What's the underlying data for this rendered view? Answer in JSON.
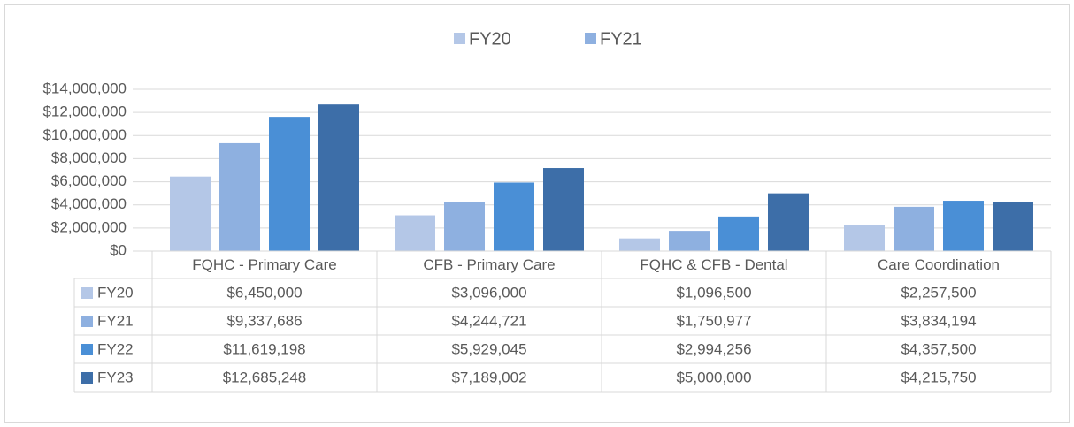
{
  "chart_data": {
    "type": "bar",
    "categories": [
      "FQHC - Primary Care",
      "CFB - Primary Care",
      "FQHC & CFB  - Dental",
      "Care Coordination"
    ],
    "series": [
      {
        "name": "FY20",
        "color": "#b4c7e7",
        "values": [
          6450000,
          3096000,
          1096500,
          2257500
        ],
        "value_labels": [
          "$6,450,000",
          "$3,096,000",
          "$1,096,500",
          "$2,257,500"
        ]
      },
      {
        "name": "FY21",
        "color": "#8eb0e0",
        "values": [
          9337686,
          4244721,
          1750977,
          3834194
        ],
        "value_labels": [
          "$9,337,686",
          "$4,244,721",
          "$1,750,977",
          "$3,834,194"
        ]
      },
      {
        "name": "FY22",
        "color": "#4a8fd6",
        "values": [
          11619198,
          5929045,
          2994256,
          4357500
        ],
        "value_labels": [
          "$11,619,198",
          "$5,929,045",
          "$2,994,256",
          "$4,357,500"
        ]
      },
      {
        "name": "FY23",
        "color": "#3d6ea8",
        "values": [
          12685248,
          7189002,
          5000000,
          4215750
        ],
        "value_labels": [
          "$12,685,248",
          "$7,189,002",
          "$5,000,000",
          "$4,215,750"
        ]
      }
    ],
    "legend_series": [
      0,
      1
    ],
    "ylim": [
      0,
      14000000
    ],
    "yticks": [
      {
        "value": 0,
        "label": "$0"
      },
      {
        "value": 2000000,
        "label": "$2,000,000"
      },
      {
        "value": 4000000,
        "label": "$4,000,000"
      },
      {
        "value": 6000000,
        "label": "$6,000,000"
      },
      {
        "value": 8000000,
        "label": "$8,000,000"
      },
      {
        "value": 10000000,
        "label": "$10,000,000"
      },
      {
        "value": 12000000,
        "label": "$12,000,000"
      },
      {
        "value": 14000000,
        "label": "$14,000,000"
      }
    ],
    "grid": true
  }
}
